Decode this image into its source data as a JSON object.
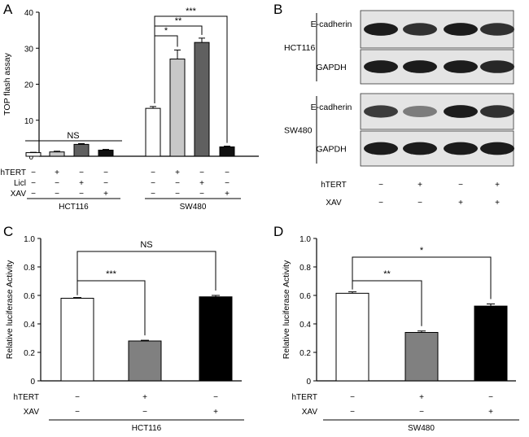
{
  "panel_letters": [
    "A",
    "B",
    "C",
    "D"
  ],
  "chart_data": [
    {
      "panel": "A",
      "type": "bar",
      "ylabel": "TOP flash assay",
      "ylim": [
        0,
        40
      ],
      "yticks": [
        0,
        10,
        20,
        30,
        40
      ],
      "groups": [
        "HCT116",
        "SW480"
      ],
      "condition_rows": [
        {
          "label": "hTERT",
          "signs": [
            "−",
            "+",
            "−",
            "−"
          ]
        },
        {
          "label": "Licl",
          "signs": [
            "−",
            "−",
            "+",
            "−"
          ]
        },
        {
          "label": "XAV",
          "signs": [
            "−",
            "−",
            "−",
            "+"
          ]
        }
      ],
      "series": [
        {
          "group": "HCT116",
          "values": [
            1.0,
            1.2,
            3.3,
            1.7
          ],
          "errors": [
            0.1,
            0.2,
            0.2,
            0.2
          ]
        },
        {
          "group": "SW480",
          "values": [
            13.3,
            27.0,
            31.6,
            2.6
          ],
          "errors": [
            0.5,
            2.5,
            1.2,
            0.2
          ]
        }
      ],
      "bar_colors": [
        "#ffffff",
        "#c8c8c8",
        "#606060",
        "#111111"
      ],
      "annotations": [
        {
          "text": "NS",
          "group": "HCT116",
          "from": 0,
          "to": 3
        },
        {
          "text": "*",
          "group": "SW480",
          "from": 0,
          "to": 1
        },
        {
          "text": "**",
          "group": "SW480",
          "from": 0,
          "to": 2
        },
        {
          "text": "***",
          "group": "SW480",
          "from": 0,
          "to": 3
        }
      ]
    },
    {
      "panel": "C",
      "type": "bar",
      "ylabel": "Relative luciferase Activity",
      "ylim": [
        0,
        1.0
      ],
      "yticks": [
        "0",
        "0.2",
        "0.4",
        "0.6",
        "0.8",
        "1.0"
      ],
      "group": "HCT116",
      "condition_rows": [
        {
          "label": "hTERT",
          "signs": [
            "−",
            "+",
            "−"
          ]
        },
        {
          "label": "XAV",
          "signs": [
            "−",
            "−",
            "+"
          ]
        }
      ],
      "values": [
        0.58,
        0.28,
        0.59
      ],
      "errors": [
        0.005,
        0.005,
        0.01
      ],
      "bar_colors": [
        "#ffffff",
        "#808080",
        "#000000"
      ],
      "annotations": [
        {
          "text": "***",
          "from": 0,
          "to": 1
        },
        {
          "text": "NS",
          "from": 0,
          "to": 2
        }
      ]
    },
    {
      "panel": "D",
      "type": "bar",
      "ylabel": "Relative luciferase Activity",
      "ylim": [
        0,
        1.0
      ],
      "yticks": [
        "0",
        "0.2",
        "0.4",
        "0.6",
        "0.8",
        "1.0"
      ],
      "group": "SW480",
      "condition_rows": [
        {
          "label": "hTERT",
          "signs": [
            "−",
            "+",
            "−"
          ]
        },
        {
          "label": "XAV",
          "signs": [
            "−",
            "−",
            "+"
          ]
        }
      ],
      "values": [
        0.615,
        0.34,
        0.525
      ],
      "errors": [
        0.01,
        0.01,
        0.015
      ],
      "bar_colors": [
        "#ffffff",
        "#808080",
        "#000000"
      ],
      "annotations": [
        {
          "text": "**",
          "from": 0,
          "to": 1
        },
        {
          "text": "*",
          "from": 0,
          "to": 2
        }
      ]
    }
  ],
  "blot": {
    "panel": "B",
    "cell_lines": [
      "HCT116",
      "SW480"
    ],
    "rows": [
      {
        "cell_line": "HCT116",
        "label": "E-cadherin",
        "intensities": [
          0.95,
          0.85,
          0.95,
          0.85
        ]
      },
      {
        "cell_line": "HCT116",
        "label": "GAPDH",
        "intensities": [
          0.95,
          0.95,
          0.95,
          0.9
        ]
      },
      {
        "cell_line": "SW480",
        "label": "E-cadherin",
        "intensities": [
          0.8,
          0.5,
          0.95,
          0.85
        ]
      },
      {
        "cell_line": "SW480",
        "label": "GAPDH",
        "intensities": [
          0.95,
          0.95,
          0.95,
          0.95
        ]
      }
    ],
    "condition_rows": [
      {
        "label": "hTERT",
        "signs": [
          "−",
          "+",
          "−",
          "+"
        ]
      },
      {
        "label": "XAV",
        "signs": [
          "−",
          "−",
          "+",
          "+"
        ]
      }
    ]
  }
}
